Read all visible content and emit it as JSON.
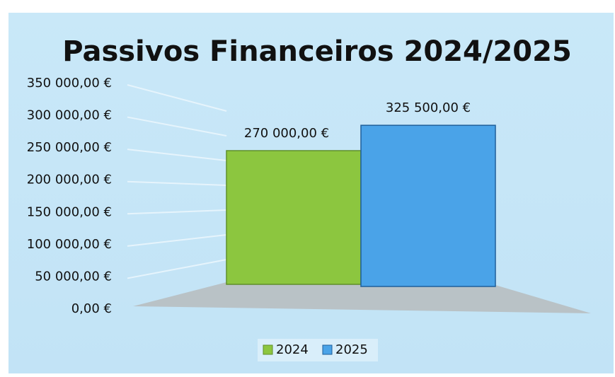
{
  "chart_data": {
    "type": "bar3d",
    "title": "Passivos Financeiros 2024/2025",
    "categories": [
      null
    ],
    "series": [
      {
        "name": "2024",
        "color": "#8cc63f",
        "values": [
          270000
        ],
        "value_labels": [
          "270 000,00 €"
        ]
      },
      {
        "name": "2025",
        "color": "#4aa3e8",
        "values": [
          325500
        ],
        "value_labels": [
          "325 500,00 €"
        ]
      }
    ],
    "ylim": [
      0,
      350000
    ],
    "yticks": [
      {
        "value": 0,
        "label": "0,00 €"
      },
      {
        "value": 50000,
        "label": "50 000,00 €"
      },
      {
        "value": 100000,
        "label": "100 000,00 €"
      },
      {
        "value": 150000,
        "label": "150 000,00 €"
      },
      {
        "value": 200000,
        "label": "200 000,00 €"
      },
      {
        "value": 250000,
        "label": "250 000,00 €"
      },
      {
        "value": 300000,
        "label": "300 000,00 €"
      },
      {
        "value": 350000,
        "label": "350 000,00 €"
      }
    ],
    "grid": true,
    "legend": "bottom"
  }
}
